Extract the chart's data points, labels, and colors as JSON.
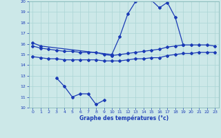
{
  "title": "Graphe des températures (°c)",
  "bg_color": "#cce8e8",
  "line_color": "#1a3ab5",
  "xlim": [
    -0.5,
    23.5
  ],
  "ylim": [
    10,
    20
  ],
  "yticks": [
    10,
    11,
    12,
    13,
    14,
    15,
    16,
    17,
    18,
    19,
    20
  ],
  "xticks": [
    0,
    1,
    2,
    3,
    4,
    5,
    6,
    7,
    8,
    9,
    10,
    11,
    12,
    13,
    14,
    15,
    16,
    17,
    18,
    19,
    20,
    21,
    22,
    23
  ],
  "curve_temp": {
    "x": [
      0,
      1,
      10,
      11,
      12,
      13,
      14,
      15,
      16,
      17,
      18,
      19
    ],
    "y": [
      16.1,
      15.8,
      15.0,
      16.7,
      18.8,
      20.0,
      20.3,
      20.1,
      19.4,
      19.9,
      18.5,
      15.9
    ]
  },
  "line_upper": {
    "x": [
      0,
      1,
      2,
      3,
      4,
      5,
      6,
      7,
      8,
      9,
      10,
      11,
      12,
      13,
      14,
      15,
      16,
      17,
      18,
      19,
      20,
      21,
      22,
      23
    ],
    "y": [
      15.8,
      15.6,
      15.5,
      15.4,
      15.3,
      15.3,
      15.2,
      15.2,
      15.2,
      15.0,
      14.9,
      15.0,
      15.1,
      15.2,
      15.3,
      15.4,
      15.5,
      15.7,
      15.8,
      15.9,
      15.9,
      15.9,
      15.9,
      15.8
    ]
  },
  "line_mid": {
    "x": [
      0,
      1,
      2,
      3,
      4,
      5,
      6,
      7,
      8,
      9,
      10,
      11,
      12,
      13,
      14,
      15,
      16,
      17,
      18,
      19,
      20,
      21,
      22,
      23
    ],
    "y": [
      14.8,
      14.7,
      14.6,
      14.6,
      14.5,
      14.5,
      14.5,
      14.5,
      14.5,
      14.4,
      14.4,
      14.4,
      14.5,
      14.6,
      14.6,
      14.7,
      14.7,
      14.9,
      15.0,
      15.1,
      15.1,
      15.2,
      15.2,
      15.2
    ]
  },
  "line_lower": {
    "x": [
      3,
      4,
      5,
      6,
      7,
      8,
      9
    ],
    "y": [
      12.8,
      12.0,
      11.0,
      11.3,
      11.3,
      10.3,
      10.7
    ]
  }
}
